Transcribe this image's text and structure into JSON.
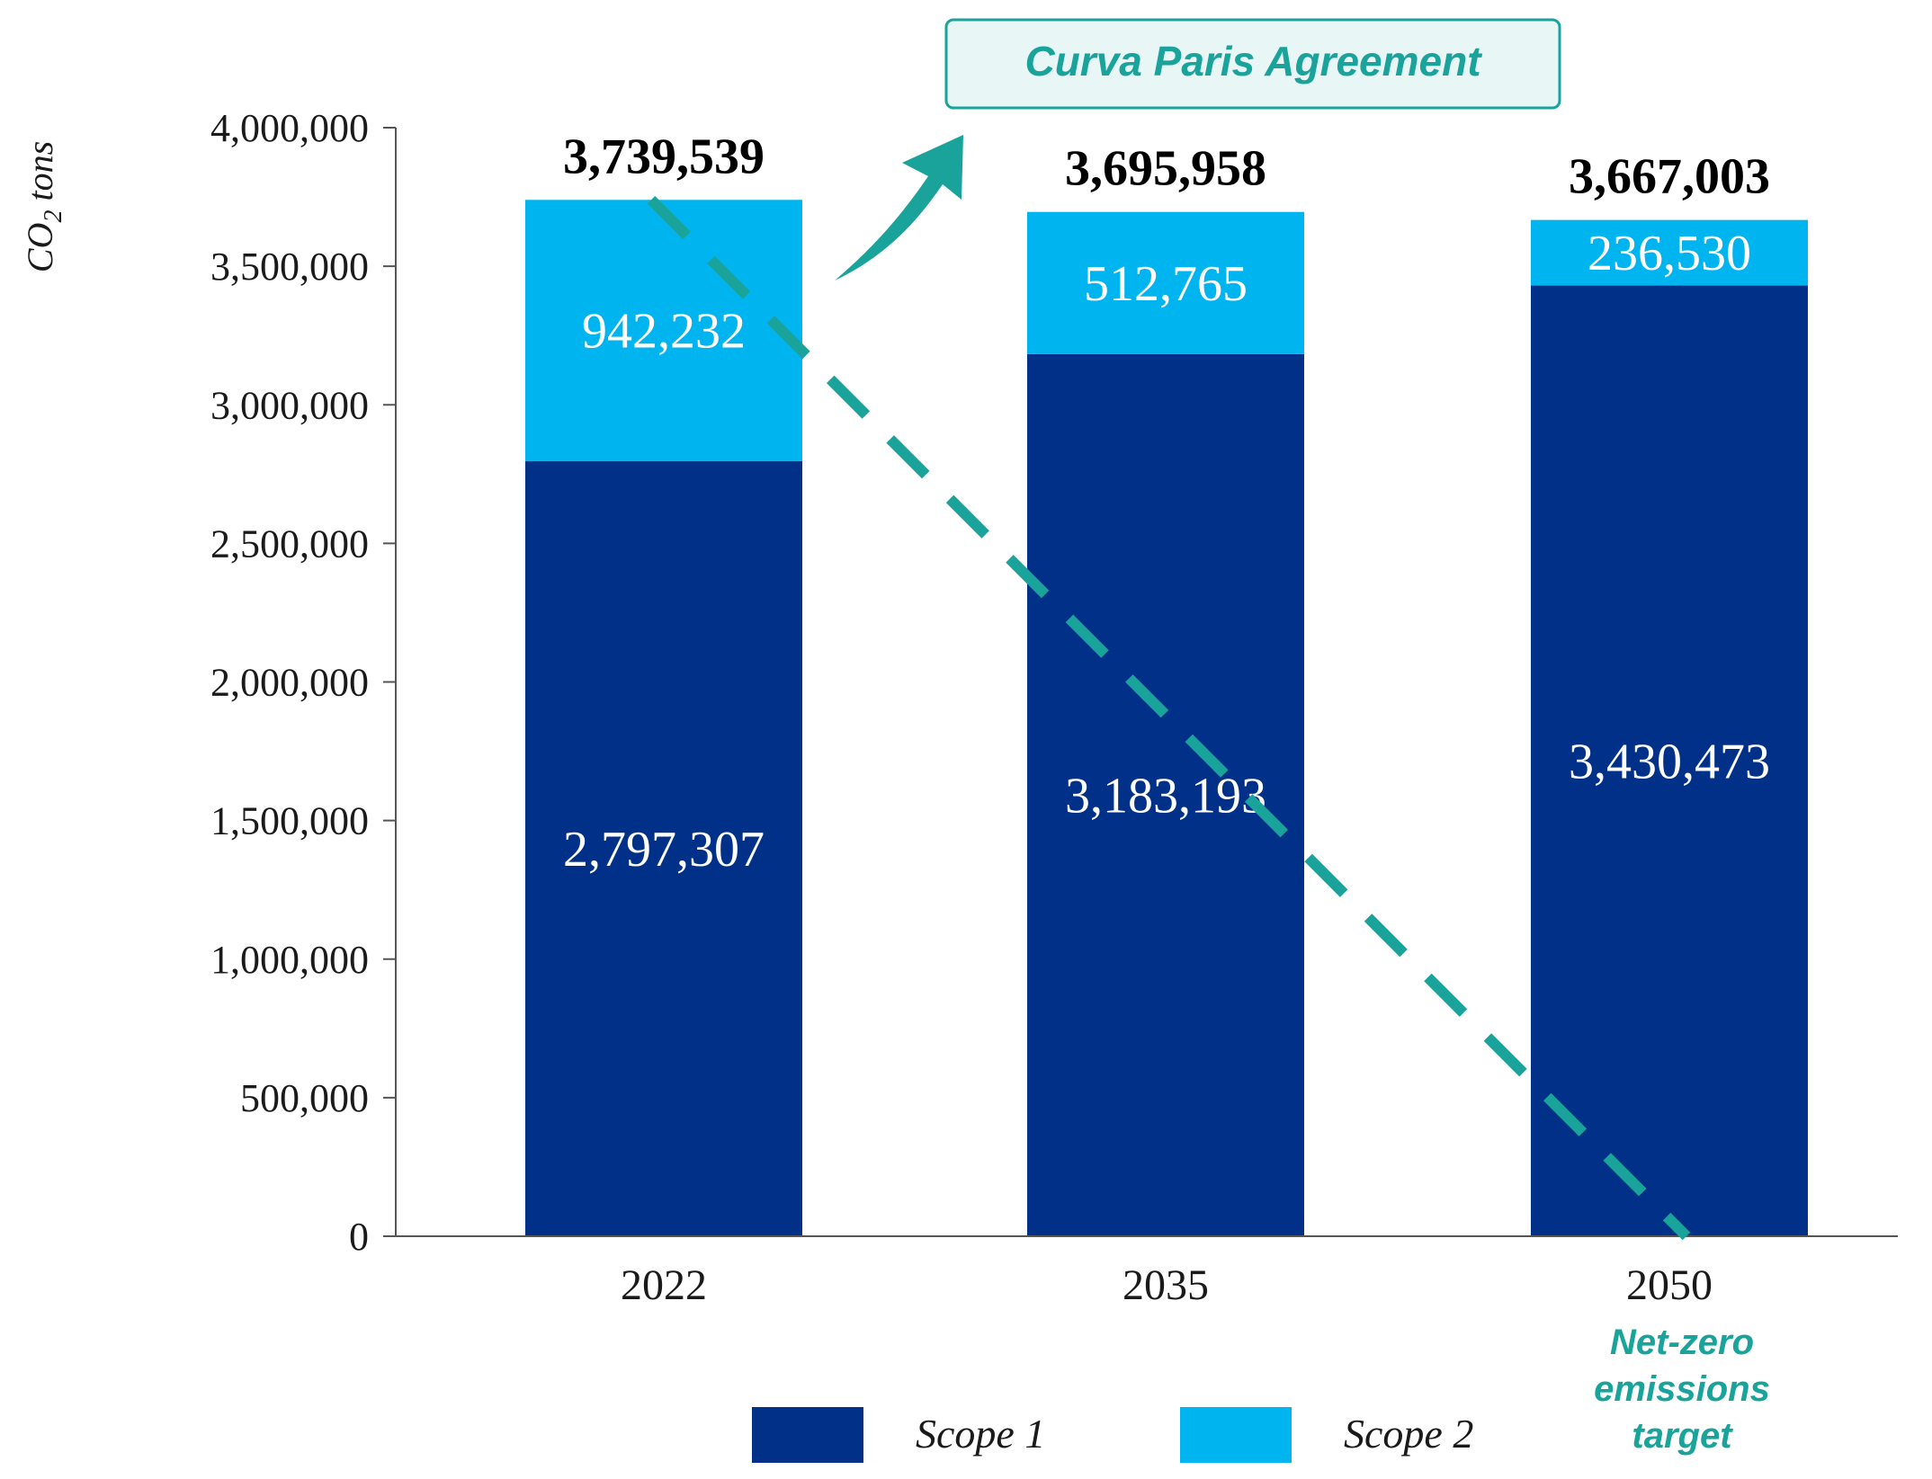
{
  "chart_data": {
    "type": "bar",
    "stacked": true,
    "categories": [
      "2022",
      "2035",
      "2050"
    ],
    "series": [
      {
        "name": "Scope 1",
        "values": [
          2797307,
          3183193,
          3430473
        ],
        "color": "#003087",
        "labels": [
          "2,797,307",
          "3,183,193",
          "3,430,473"
        ]
      },
      {
        "name": "Scope 2",
        "values": [
          942232,
          512765,
          236530
        ],
        "color": "#00b5ef",
        "labels": [
          "942,232",
          "512,765",
          "236,530"
        ]
      }
    ],
    "totals": [
      3739539,
      3695958,
      3667003
    ],
    "total_labels": [
      "3,739,539",
      "3,695,958",
      "3,667,003"
    ],
    "ylabel_main": "CO",
    "ylabel_sub": "2",
    "ylabel_unit": " tons",
    "ylim": [
      0,
      4000000
    ],
    "yticks": [
      0,
      500000,
      1000000,
      1500000,
      2000000,
      2500000,
      3000000,
      3500000,
      4000000
    ],
    "ytick_labels": [
      "0",
      "500,000",
      "1,000,000",
      "1,500,000",
      "2,000,000",
      "2,500,000",
      "3,000,000",
      "3,500,000",
      "4,000,000"
    ],
    "trend_line": {
      "from_value": 3739539,
      "from_category": "2022",
      "to_value": 0,
      "to_category": "2050",
      "color": "#1aa39a",
      "style": "dashed"
    },
    "callout": {
      "text": "Curva Paris Agreement",
      "color": "#1aa39a",
      "fill": "#e8f6f5"
    },
    "annotation": {
      "lines": [
        "Net-zero",
        "emissions",
        "target"
      ],
      "category": "2050"
    },
    "legend": {
      "position": "bottom-center"
    }
  }
}
